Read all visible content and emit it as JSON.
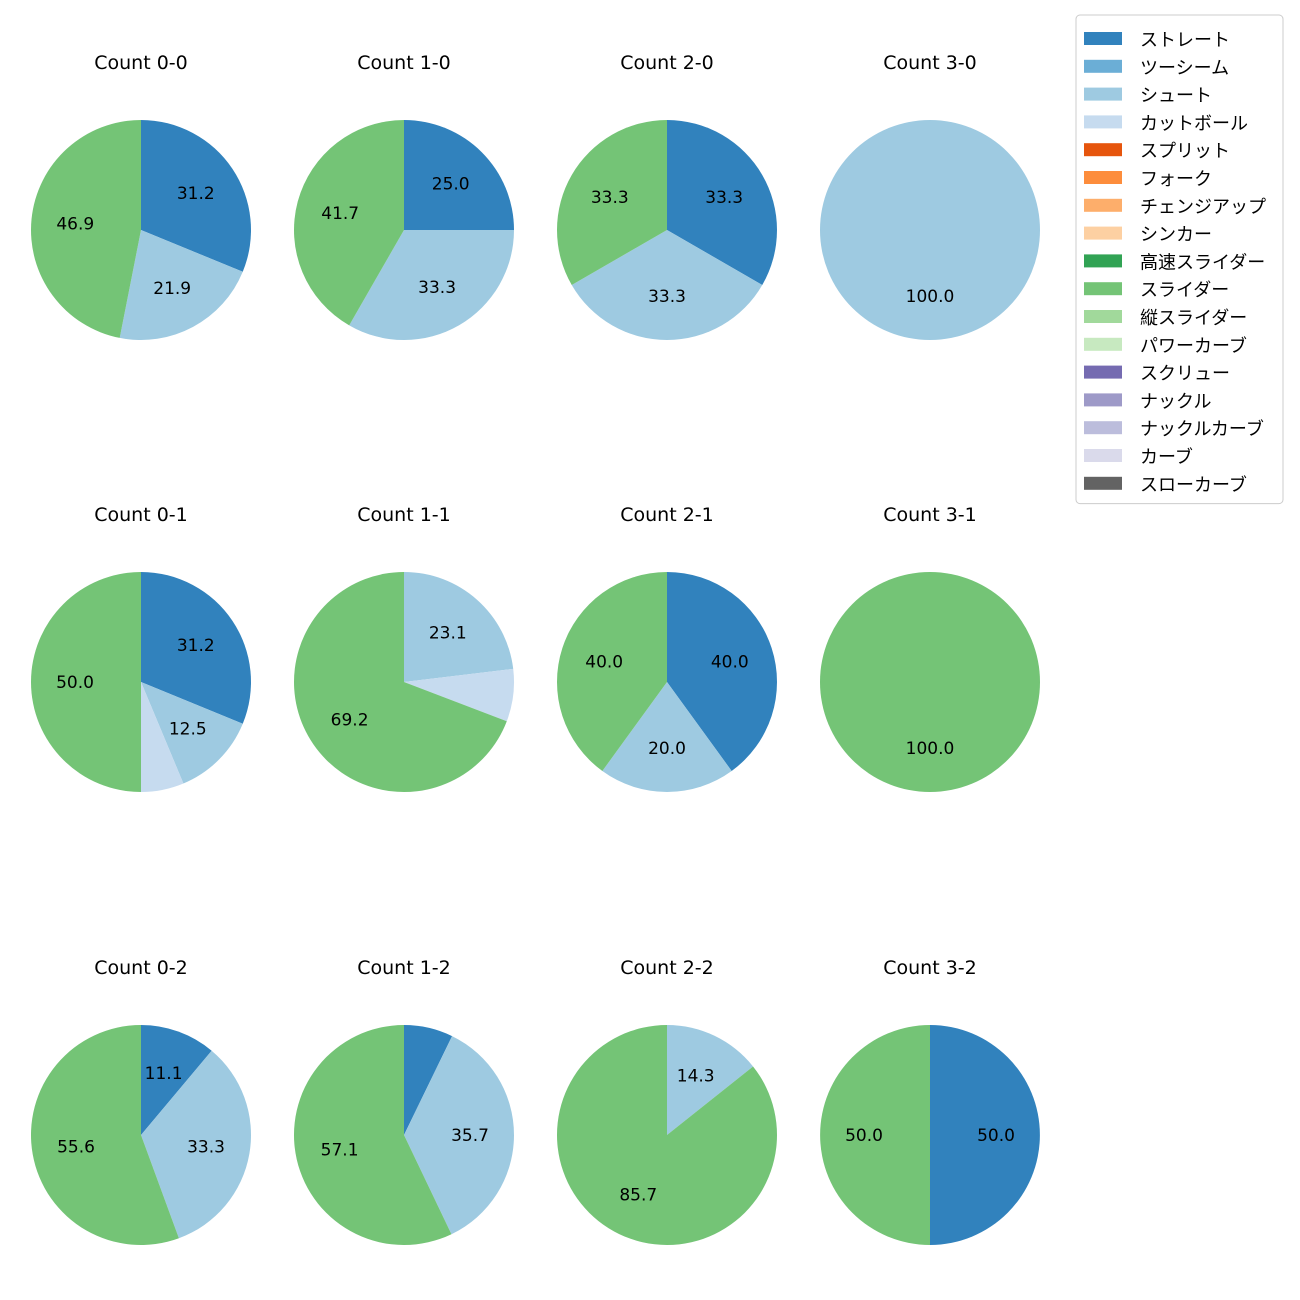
{
  "legend": {
    "items": [
      {
        "label": "ストレート",
        "color": "#3182bd"
      },
      {
        "label": "ツーシーム",
        "color": "#6baed6"
      },
      {
        "label": "シュート",
        "color": "#9ecae1"
      },
      {
        "label": "カットボール",
        "color": "#c6dbef"
      },
      {
        "label": "スプリット",
        "color": "#e6550d"
      },
      {
        "label": "フォーク",
        "color": "#fd8d3c"
      },
      {
        "label": "チェンジアップ",
        "color": "#fdae6b"
      },
      {
        "label": "シンカー",
        "color": "#fdd0a2"
      },
      {
        "label": "高速スライダー",
        "color": "#31a354"
      },
      {
        "label": "スライダー",
        "color": "#74c476"
      },
      {
        "label": "縦スライダー",
        "color": "#a1d99b"
      },
      {
        "label": "パワーカーブ",
        "color": "#c7e9c0"
      },
      {
        "label": "スクリュー",
        "color": "#756bb1"
      },
      {
        "label": "ナックル",
        "color": "#9e9ac8"
      },
      {
        "label": "ナックルカーブ",
        "color": "#bcbddc"
      },
      {
        "label": "カーブ",
        "color": "#dadaeb"
      },
      {
        "label": "スローカーブ",
        "color": "#636363"
      }
    ]
  },
  "chart_data": [
    {
      "type": "pie",
      "title": "Count 0-0",
      "slices": [
        {
          "name": "ストレート",
          "value": 31.2,
          "label": "31.2"
        },
        {
          "name": "シュート",
          "value": 21.9,
          "label": "21.9"
        },
        {
          "name": "スライダー",
          "value": 46.9,
          "label": "46.9"
        }
      ]
    },
    {
      "type": "pie",
      "title": "Count 1-0",
      "slices": [
        {
          "name": "ストレート",
          "value": 25.0,
          "label": "25.0"
        },
        {
          "name": "シュート",
          "value": 33.3,
          "label": "33.3"
        },
        {
          "name": "スライダー",
          "value": 41.7,
          "label": "41.7"
        }
      ]
    },
    {
      "type": "pie",
      "title": "Count 2-0",
      "slices": [
        {
          "name": "ストレート",
          "value": 33.3,
          "label": "33.3"
        },
        {
          "name": "シュート",
          "value": 33.3,
          "label": "33.3"
        },
        {
          "name": "スライダー",
          "value": 33.3,
          "label": "33.3"
        }
      ]
    },
    {
      "type": "pie",
      "title": "Count 3-0",
      "slices": [
        {
          "name": "シュート",
          "value": 100.0,
          "label": "100.0"
        }
      ]
    },
    {
      "type": "pie",
      "title": "Count 0-1",
      "slices": [
        {
          "name": "ストレート",
          "value": 31.2,
          "label": "31.2"
        },
        {
          "name": "シュート",
          "value": 12.5,
          "label": "12.5"
        },
        {
          "name": "カットボール",
          "value": 6.3,
          "label": ""
        },
        {
          "name": "スライダー",
          "value": 50.0,
          "label": "50.0"
        }
      ]
    },
    {
      "type": "pie",
      "title": "Count 1-1",
      "slices": [
        {
          "name": "シュート",
          "value": 23.1,
          "label": "23.1"
        },
        {
          "name": "カットボール",
          "value": 7.7,
          "label": ""
        },
        {
          "name": "スライダー",
          "value": 69.2,
          "label": "69.2"
        }
      ]
    },
    {
      "type": "pie",
      "title": "Count 2-1",
      "slices": [
        {
          "name": "ストレート",
          "value": 40.0,
          "label": "40.0"
        },
        {
          "name": "シュート",
          "value": 20.0,
          "label": "20.0"
        },
        {
          "name": "スライダー",
          "value": 40.0,
          "label": "40.0"
        }
      ]
    },
    {
      "type": "pie",
      "title": "Count 3-1",
      "slices": [
        {
          "name": "スライダー",
          "value": 100.0,
          "label": "100.0"
        }
      ]
    },
    {
      "type": "pie",
      "title": "Count 0-2",
      "slices": [
        {
          "name": "ストレート",
          "value": 11.1,
          "label": "11.1"
        },
        {
          "name": "シュート",
          "value": 33.3,
          "label": "33.3"
        },
        {
          "name": "スライダー",
          "value": 55.6,
          "label": "55.6"
        }
      ]
    },
    {
      "type": "pie",
      "title": "Count 1-2",
      "slices": [
        {
          "name": "ストレート",
          "value": 7.2,
          "label": ""
        },
        {
          "name": "シュート",
          "value": 35.7,
          "label": "35.7"
        },
        {
          "name": "スライダー",
          "value": 57.1,
          "label": "57.1"
        }
      ]
    },
    {
      "type": "pie",
      "title": "Count 2-2",
      "slices": [
        {
          "name": "シュート",
          "value": 14.3,
          "label": "14.3"
        },
        {
          "name": "スライダー",
          "value": 85.7,
          "label": "85.7"
        }
      ]
    },
    {
      "type": "pie",
      "title": "Count 3-2",
      "slices": [
        {
          "name": "ストレート",
          "value": 50.0,
          "label": "50.0"
        },
        {
          "name": "スライダー",
          "value": 50.0,
          "label": "50.0"
        }
      ]
    }
  ]
}
